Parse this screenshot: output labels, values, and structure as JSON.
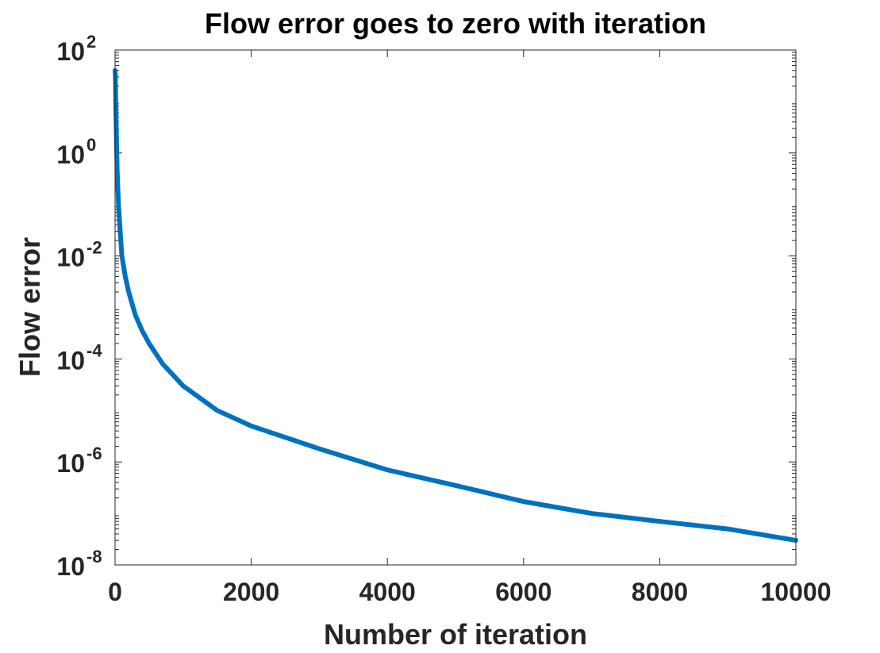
{
  "chart_data": {
    "type": "line",
    "title": "Flow error goes to zero with iteration",
    "xlabel": "Number of iteration",
    "ylabel": "Flow error",
    "xlim": [
      0,
      10000
    ],
    "ylim": [
      1e-08,
      100
    ],
    "yscale": "log",
    "grid": false,
    "xticks": [
      0,
      2000,
      4000,
      6000,
      8000,
      10000
    ],
    "xtick_labels": [
      "0",
      "2000",
      "4000",
      "6000",
      "8000",
      "10000"
    ],
    "yticks": [
      {
        "value": 1e-08,
        "base": "10",
        "exp": "-8"
      },
      {
        "value": 1e-06,
        "base": "10",
        "exp": "-6"
      },
      {
        "value": 0.0001,
        "base": "10",
        "exp": "-4"
      },
      {
        "value": 0.01,
        "base": "10",
        "exp": "-2"
      },
      {
        "value": 1,
        "base": "10",
        "exp": "0"
      },
      {
        "value": 100,
        "base": "10",
        "exp": "2"
      }
    ],
    "series": [
      {
        "color": "#0072BD",
        "x": [
          0,
          5,
          10,
          20,
          30,
          50,
          75,
          100,
          150,
          200,
          300,
          400,
          500,
          700,
          1000,
          1500,
          2000,
          2500,
          3000,
          4000,
          5000,
          6000,
          7000,
          8000,
          9000,
          10000
        ],
        "y": [
          40,
          30,
          10,
          2,
          0.5,
          0.1,
          0.03,
          0.01,
          0.004,
          0.002,
          0.0007,
          0.00035,
          0.0002,
          8e-05,
          3e-05,
          1e-05,
          5e-06,
          3e-06,
          1.8e-06,
          7e-07,
          3.5e-07,
          1.7e-07,
          1e-07,
          7e-08,
          5e-08,
          3e-08
        ]
      }
    ]
  }
}
